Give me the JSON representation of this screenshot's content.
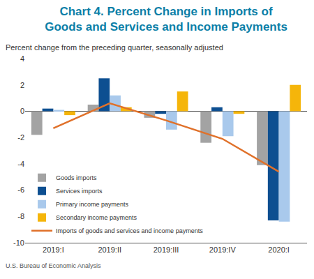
{
  "chart_data": {
    "type": "bar",
    "title": "Chart 4. Percent Change in Imports of Goods and Services and Income Payments",
    "subtitle": "Percent change from the preceding quarter, seasonally adjusted",
    "source": "U.S. Bureau of Economic Analysis",
    "categories": [
      "2019:I",
      "2019:II",
      "2019:III",
      "2019:IV",
      "2020:I"
    ],
    "series": [
      {
        "name": "Goods imports",
        "type": "bar",
        "color": "#a3a3a3",
        "values": [
          -1.8,
          0.5,
          -0.5,
          -2.4,
          -4.1
        ]
      },
      {
        "name": "Services imports",
        "type": "bar",
        "color": "#0d4f91",
        "values": [
          0.2,
          2.5,
          -0.2,
          0.3,
          -8.3
        ]
      },
      {
        "name": "Primary income payments",
        "type": "bar",
        "color": "#a9c9ec",
        "values": [
          0.1,
          1.2,
          -1.4,
          -1.9,
          -8.4
        ]
      },
      {
        "name": "Secondary income payments",
        "type": "bar",
        "color": "#f5b50a",
        "values": [
          -0.3,
          0.3,
          1.5,
          -0.2,
          2.0
        ]
      },
      {
        "name": "Imports of goods and services and income payments",
        "type": "line",
        "color": "#e0712a",
        "values": [
          -1.3,
          0.6,
          -0.7,
          -2.1,
          -4.6
        ]
      }
    ],
    "ylim": [
      -10,
      4
    ],
    "yticks": [
      -10,
      -8,
      -6,
      -4,
      -2,
      0,
      2,
      4
    ],
    "grid": false,
    "legend": "bottom left"
  }
}
